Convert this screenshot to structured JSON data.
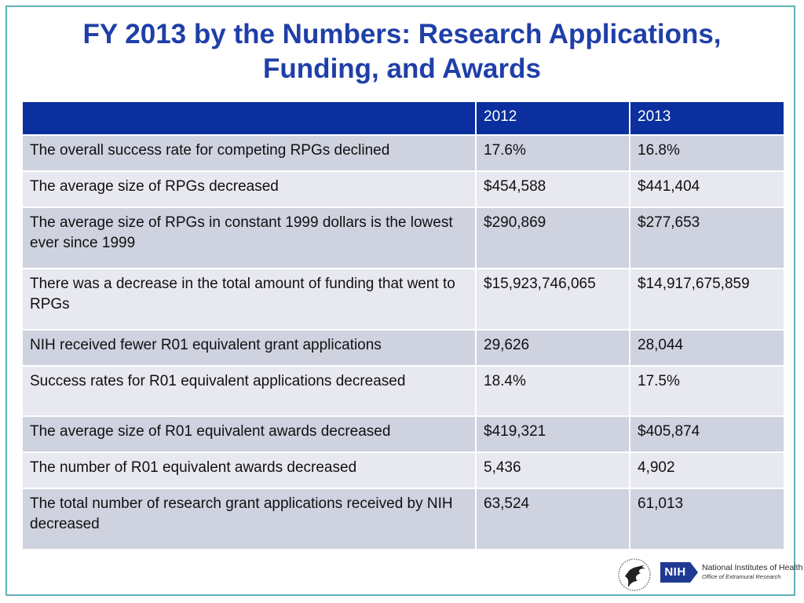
{
  "slide": {
    "title_line1": "FY 2013 by the Numbers: Research Applications,",
    "title_line2": "Funding, and Awards"
  },
  "table": {
    "headers": [
      "",
      "2012",
      "2013"
    ],
    "rows": [
      {
        "label": "The overall success rate for competing RPGs declined",
        "y2012": "17.6%",
        "y2013": "16.8%"
      },
      {
        "label": "The average size of RPGs decreased",
        "y2012": "$454,588",
        "y2013": "$441,404"
      },
      {
        "label": "The average size of RPGs in constant 1999 dollars is the lowest ever since 1999",
        "y2012": "$290,869",
        "y2013": "$277,653"
      },
      {
        "label": "There was a decrease in the total amount of funding that went to RPGs",
        "y2012": "$15,923,746,065",
        "y2013": "$14,917,675,859"
      },
      {
        "label": "NIH received fewer R01 equivalent grant applications",
        "y2012": "29,626",
        "y2013": "28,044"
      },
      {
        "label": "Success rates for R01 equivalent applications decreased",
        "y2012": "18.4%",
        "y2013": "17.5%"
      },
      {
        "label": "The average size of R01 equivalent awards decreased",
        "y2012": "$419,321",
        "y2013": "$405,874"
      },
      {
        "label": "The number of R01 equivalent awards decreased",
        "y2012": "5,436",
        "y2013": "4,902"
      },
      {
        "label": "The total number of research grant applications received by NIH decreased",
        "y2012": "63,524",
        "y2013": "61,013"
      }
    ]
  },
  "footer": {
    "nih_abbrev": "NIH",
    "nih_name": "National Institutes of Health",
    "nih_office": "Office of Extramural Research"
  },
  "colors": {
    "title": "#1f3fa8",
    "header_bg": "#0b2f9e",
    "row_odd": "#cfd2df",
    "row_even": "#e8e9f0",
    "frame": "#5fb1b6"
  },
  "icons": {
    "hhs_seal": "hhs-eagle-seal-icon",
    "nih_logo": "nih-logo-icon"
  }
}
